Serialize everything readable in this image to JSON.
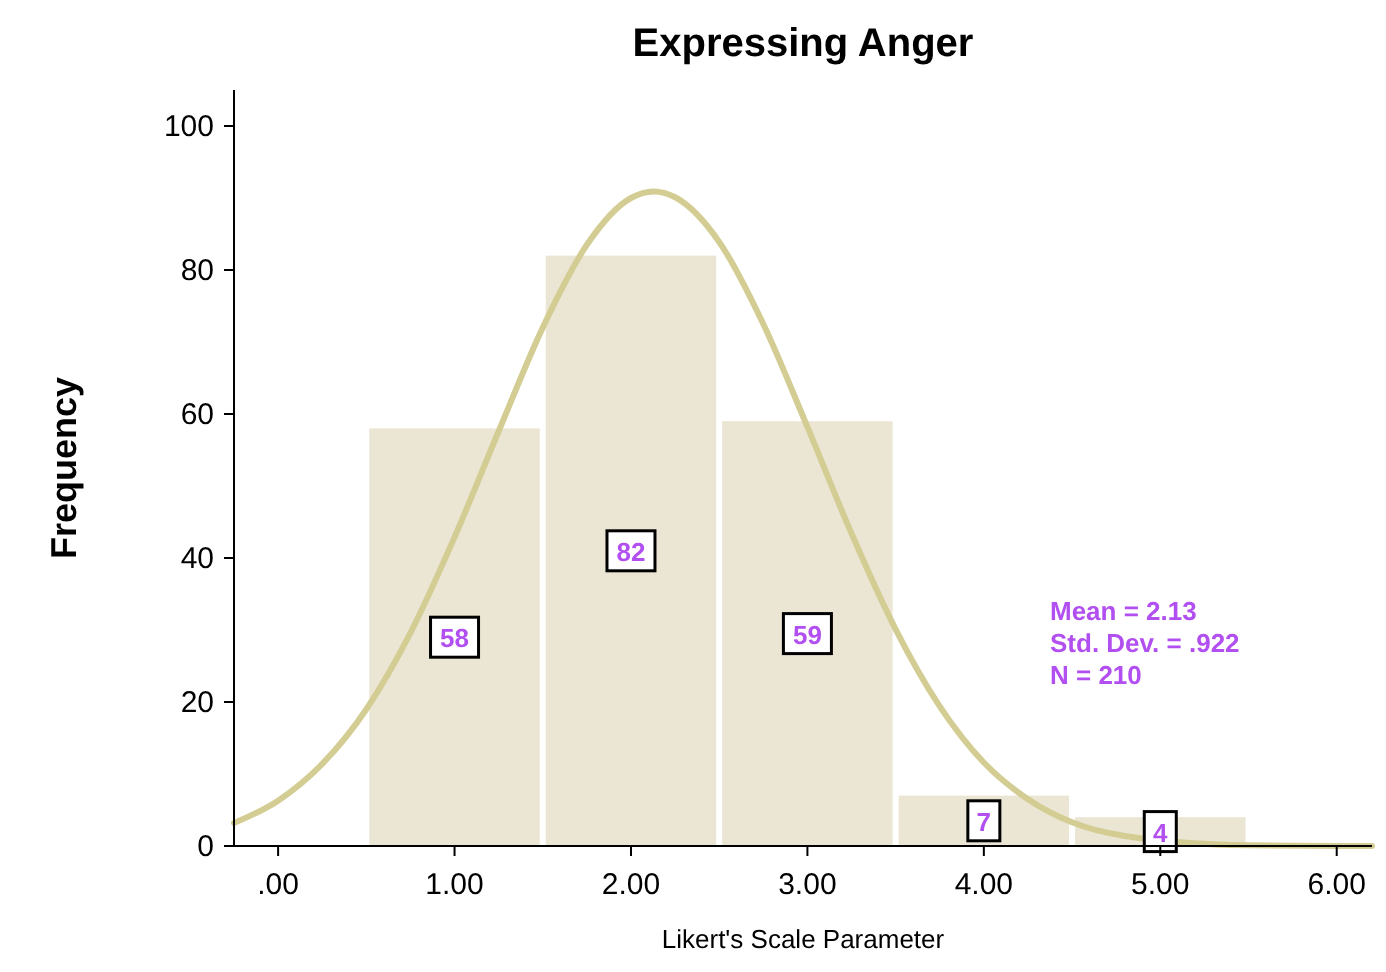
{
  "chart_data": {
    "type": "histogram",
    "title": "Expressing Anger",
    "xlabel": "Likert's Scale Parameter",
    "ylabel": "Frequency",
    "bins": [
      0.5,
      1.5,
      2.5,
      3.5,
      4.5,
      5.5
    ],
    "values": [
      58,
      82,
      59,
      7,
      4
    ],
    "color": "#ebe5d3",
    "value_labels": [
      "58",
      "82",
      "59",
      "7",
      "4"
    ],
    "series": [
      {
        "type": "line",
        "color": "#d4cd93",
        "x": [
          -0.25,
          0,
          0.25,
          0.5,
          0.75,
          1,
          1.25,
          1.5,
          1.75,
          2,
          2.13,
          2.25,
          2.5,
          2.75,
          3,
          3.25,
          3.5,
          3.75,
          4,
          4.25,
          4.5,
          4.8,
          5.5,
          6,
          6.2
        ],
        "values": [
          3.2,
          6.3,
          11.4,
          19,
          29.6,
          42.9,
          57.6,
          72,
          83.5,
          90,
          90.9,
          90.1,
          83.9,
          72.5,
          58.2,
          43.4,
          30.1,
          19.4,
          11.6,
          6.5,
          3.3,
          1.4,
          0.1,
          0,
          0
        ]
      }
    ],
    "xlim": [
      -0.25,
      6.2
    ],
    "xticks": [
      {
        "value": 0,
        "label": ".00"
      },
      {
        "value": 1,
        "label": "1.00"
      },
      {
        "value": 2,
        "label": "2.00"
      },
      {
        "value": 3,
        "label": "3.00"
      },
      {
        "value": 4,
        "label": "4.00"
      },
      {
        "value": 5,
        "label": "5.00"
      },
      {
        "value": 6,
        "label": "6.00"
      }
    ],
    "ylim": [
      0,
      105
    ],
    "yticks": [
      0,
      20,
      40,
      60,
      80,
      100
    ],
    "grid": false,
    "annotations": [
      "Mean = 2.13",
      "Std. Dev. = .922",
      "N = 210"
    ]
  }
}
